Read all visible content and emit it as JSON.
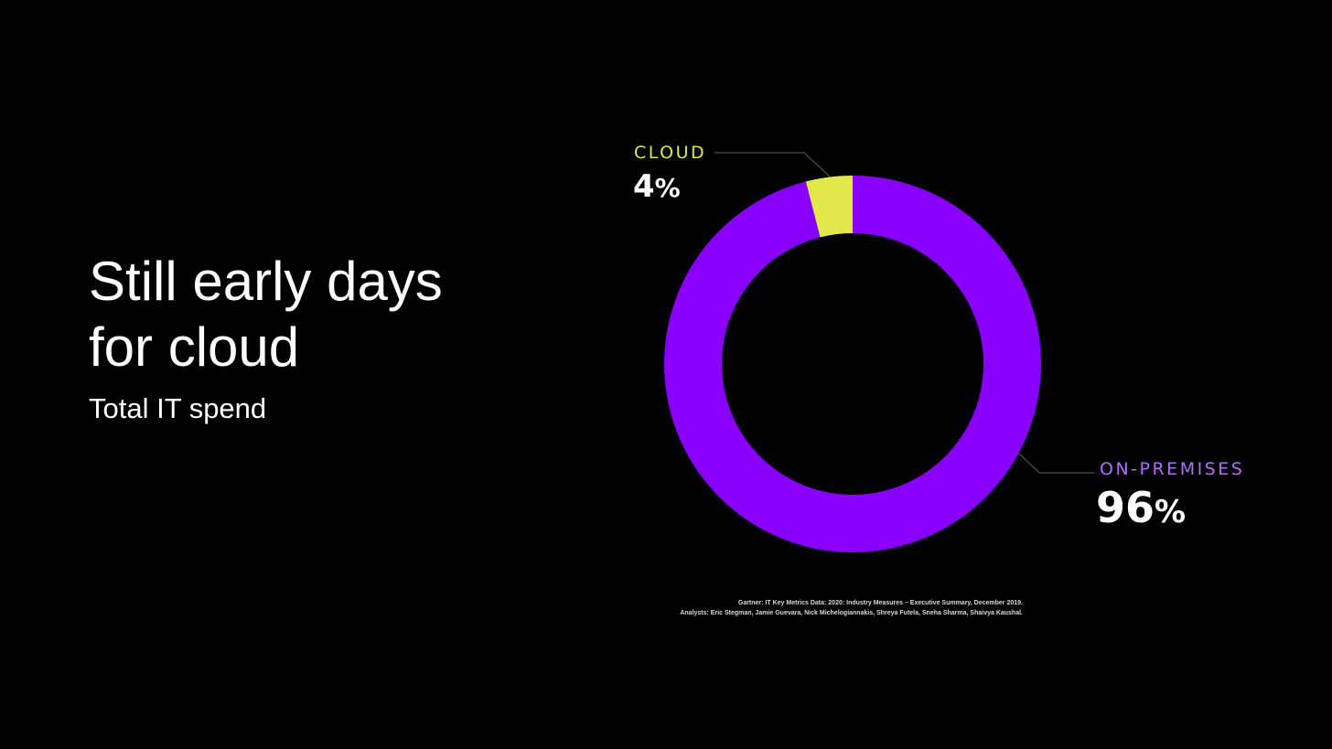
{
  "slide": {
    "title_line1": "Still early days",
    "title_line2": "for cloud",
    "subtitle": "Total IT spend"
  },
  "chart_data": {
    "type": "pie",
    "style": "donut",
    "title": "",
    "slices": [
      {
        "name": "CLOUD",
        "value": 4,
        "display": "4",
        "unit": "%",
        "color": "#E3E84A",
        "label_color": "#E3E84A"
      },
      {
        "name": "ON-PREMISES",
        "value": 96,
        "display": "96",
        "unit": "%",
        "color": "#8A00FF",
        "label_color": "#B36BFF"
      }
    ],
    "leader_line_color": "#4a4a4a",
    "background": "#000000"
  },
  "source": {
    "line1": "Gartner: IT Key Metrics Data: 2020: Industry Measures – Executive Summary, December 2019.",
    "line2": "Analysts: Eric Stegman, Jamie Guevara, Nick Michelogiannakis, Shreya Futela, Sneha Sharma, Shaivya Kaushal."
  }
}
